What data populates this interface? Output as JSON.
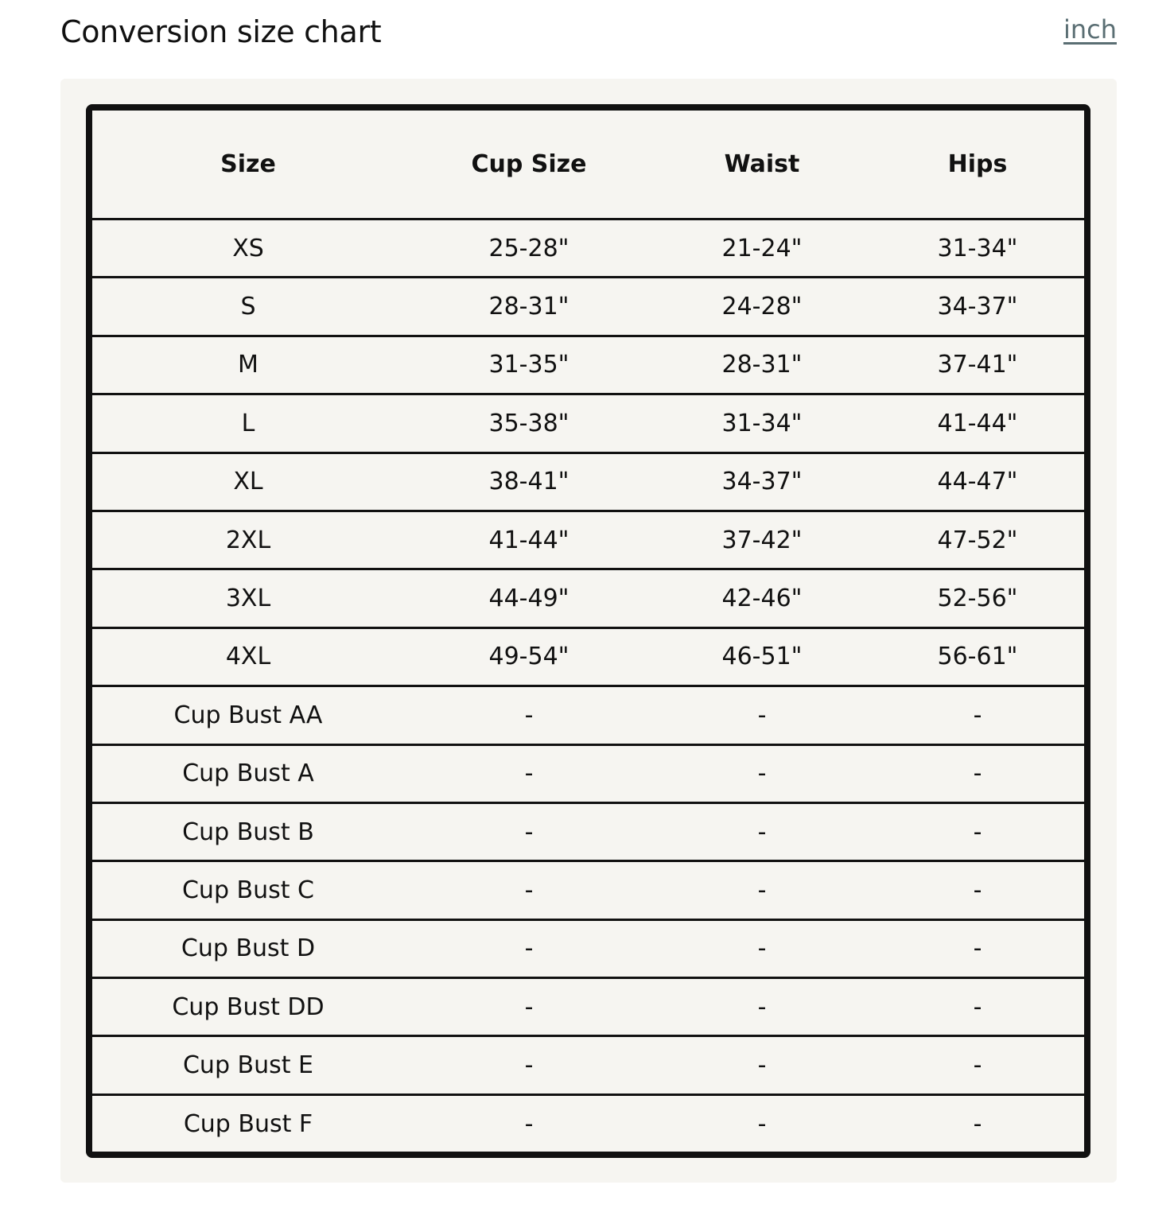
{
  "header": {
    "title": "Conversion size chart",
    "unit_toggle": "inch"
  },
  "table": {
    "columns": [
      "Size",
      "Cup Size",
      "Waist",
      "Hips"
    ],
    "rows": [
      [
        "XS",
        "25-28\"",
        "21-24\"",
        "31-34\""
      ],
      [
        "S",
        "28-31\"",
        "24-28\"",
        "34-37\""
      ],
      [
        "M",
        "31-35\"",
        "28-31\"",
        "37-41\""
      ],
      [
        "L",
        "35-38\"",
        "31-34\"",
        "41-44\""
      ],
      [
        "XL",
        "38-41\"",
        "34-37\"",
        "44-47\""
      ],
      [
        "2XL",
        "41-44\"",
        "37-42\"",
        "47-52\""
      ],
      [
        "3XL",
        "44-49\"",
        "42-46\"",
        "52-56\""
      ],
      [
        "4XL",
        "49-54\"",
        "46-51\"",
        "56-61\""
      ],
      [
        "Cup Bust AA",
        "-",
        "-",
        "-"
      ],
      [
        "Cup Bust A",
        "-",
        "-",
        "-"
      ],
      [
        "Cup Bust B",
        "-",
        "-",
        "-"
      ],
      [
        "Cup Bust C",
        "-",
        "-",
        "-"
      ],
      [
        "Cup Bust D",
        "-",
        "-",
        "-"
      ],
      [
        "Cup Bust DD",
        "-",
        "-",
        "-"
      ],
      [
        "Cup Bust E",
        "-",
        "-",
        "-"
      ],
      [
        "Cup Bust F",
        "-",
        "-",
        "-"
      ]
    ]
  }
}
